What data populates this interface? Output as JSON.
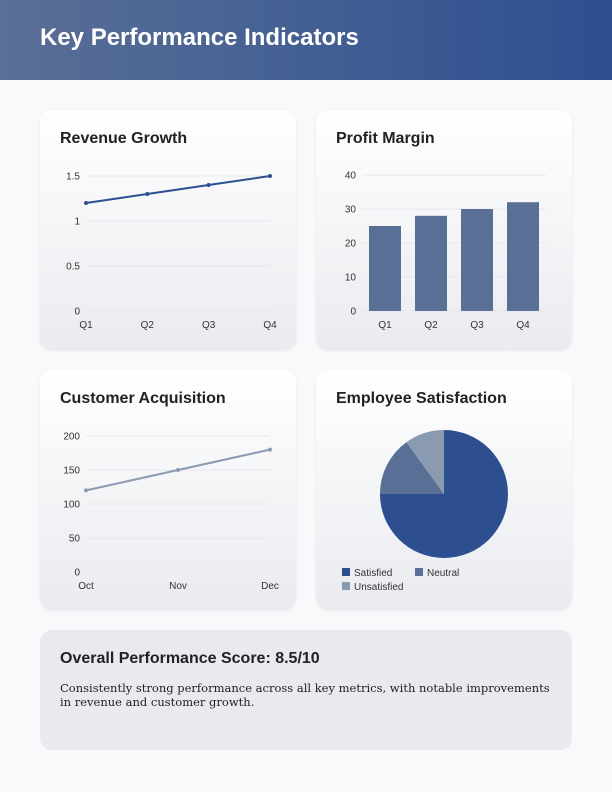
{
  "title": "Key Performance Indicators",
  "colors": {
    "primary": "#2d4f90",
    "bar": "#5a6f96",
    "secondary": "#8a9ab0"
  },
  "chart_data": [
    {
      "type": "line",
      "title": "Revenue Growth",
      "categories": [
        "Q1",
        "Q2",
        "Q3",
        "Q4"
      ],
      "values": [
        1.2,
        1.3,
        1.4,
        1.5
      ],
      "ylim": [
        0,
        1.5
      ],
      "yticks": [
        "0",
        "0.5",
        "1",
        "1.5"
      ],
      "color": "#2d4f90"
    },
    {
      "type": "bar",
      "title": "Profit Margin",
      "categories": [
        "Q1",
        "Q2",
        "Q3",
        "Q4"
      ],
      "values": [
        25,
        28,
        30,
        32
      ],
      "ylim": [
        0,
        40
      ],
      "yticks": [
        "0",
        "10",
        "20",
        "30",
        "40"
      ],
      "color": "#5a6f96"
    },
    {
      "type": "line",
      "title": "Customer Acquisition",
      "categories": [
        "Oct",
        "Nov",
        "Dec"
      ],
      "values": [
        120,
        150,
        180
      ],
      "ylim": [
        0,
        200
      ],
      "yticks": [
        "0",
        "50",
        "100",
        "150",
        "200"
      ],
      "color": "#8a9ab0"
    },
    {
      "type": "pie",
      "title": "Employee Satisfaction",
      "categories": [
        "Satisfied",
        "Neutral",
        "Unsatisfied"
      ],
      "values": [
        75,
        15,
        10
      ],
      "colors": [
        "#2d4f90",
        "#5a6f96",
        "#8a9ab0"
      ],
      "legend": "bottom"
    }
  ],
  "summary": {
    "title": "Overall Performance Score: 8.5/10",
    "text": "Consistently strong performance across all key metrics, with notable improvements in revenue and customer growth."
  }
}
